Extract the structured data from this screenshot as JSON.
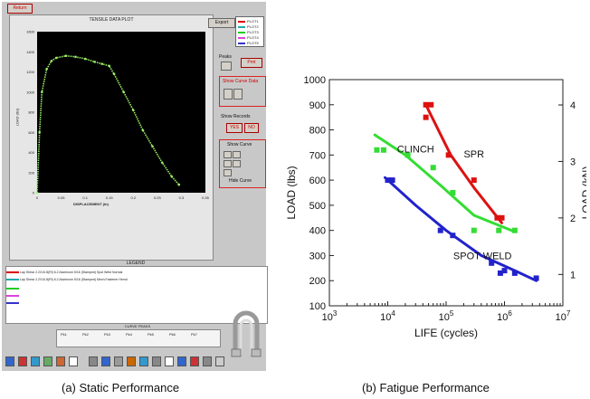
{
  "left_panel": {
    "header_button": "Return",
    "plot_title": "TENSILE DATA PLOT",
    "export_button": "Export",
    "legend_entries": [
      "PLOT1",
      "PLOT2",
      "PLOT3",
      "PLOT4",
      "PLOT5"
    ],
    "peaks_label": "Peaks",
    "peaks_button": "Prnt",
    "show_curve_data": "Show Curve Data",
    "show_records": "Show Records",
    "yes_button": "YES",
    "no_button": "NO",
    "show_curve": "Show Curve",
    "hide_curve": "Hide Curve",
    "legend_heading": "LEGEND",
    "legend_rows": [
      "Lap Shear   2.2X10.8(Rl)   6.2 Aluminum   5/16 (Stamped)   Spot Weld   Normal",
      "Lap Shear   2.2X10.8(Rl)   6.2 Aluminum   5/16 (Stamped)   Mech.Fastener   Hemd"
    ],
    "curve_peaks_heading": "CURVE PEAKS",
    "peaks_cols": [
      "Pk1",
      "Pk2",
      "Pk3",
      "Pk4",
      "Pk5",
      "Pk6",
      "Pk7"
    ],
    "ylabel": "LOAD (lbs)",
    "xlabel": "DISPLACEMENT (in)",
    "colors": {
      "curve": "#99ee66",
      "plot_bg": "#000000",
      "frame": "#c8c8c8",
      "accent": "#cc0000"
    }
  },
  "captions": {
    "left": "(a) Static Performance",
    "right": "(b) Fatigue Performance"
  },
  "chart_data": [
    {
      "type": "line",
      "title": "TENSILE DATA PLOT",
      "xlabel": "DISPLACEMENT (in)",
      "ylabel": "LOAD (lbs)",
      "xlim": [
        0,
        0.35
      ],
      "ylim": [
        0,
        1600
      ],
      "xticks": [
        "0",
        "0.05",
        "0.1",
        "0.15",
        "0.2",
        "0.25",
        "0.3",
        "0.35"
      ],
      "yticks": [
        "0",
        "200",
        "400",
        "600",
        "800",
        "1000",
        "1200",
        "1400",
        "1600"
      ],
      "series": [
        {
          "color": "#99ee66",
          "x": [
            0.0,
            0.005,
            0.01,
            0.02,
            0.03,
            0.04,
            0.06,
            0.08,
            0.1,
            0.12,
            0.135,
            0.15,
            0.16,
            0.18,
            0.2,
            0.22,
            0.24,
            0.26,
            0.28,
            0.295
          ],
          "y": [
            0,
            600,
            1000,
            1230,
            1310,
            1340,
            1360,
            1350,
            1330,
            1300,
            1280,
            1260,
            1180,
            1000,
            820,
            620,
            460,
            300,
            160,
            80
          ]
        }
      ]
    },
    {
      "type": "scatter",
      "xlabel": "LIFE (cycles)",
      "ylabel": "LOAD (lbs)",
      "ylabel_right": "LOAD (kN)",
      "xscale": "log",
      "xlim": [
        1000,
        10000000
      ],
      "ylim": [
        100,
        1000
      ],
      "xticks": [
        "10^3",
        "10^4",
        "10^5",
        "10^6",
        "10^7"
      ],
      "yticks": [
        "100",
        "200",
        "300",
        "400",
        "500",
        "600",
        "700",
        "800",
        "900",
        "1000"
      ],
      "yticks_right": [
        "1",
        "2",
        "3",
        "4"
      ],
      "grid": false,
      "series": [
        {
          "name": "SPR",
          "color": "#dd1111",
          "points": [
            [
              45000,
              900
            ],
            [
              55000,
              900
            ],
            [
              45000,
              850
            ],
            [
              110000,
              700
            ],
            [
              300000,
              600
            ],
            [
              750000,
              450
            ],
            [
              900000,
              450
            ]
          ],
          "fit": [
            [
              45000,
              900
            ],
            [
              120000,
              700
            ],
            [
              300000,
              570
            ],
            [
              900000,
              430
            ]
          ]
        },
        {
          "name": "CLINCH",
          "color": "#33dd33",
          "points": [
            [
              6500,
              720
            ],
            [
              8500,
              720
            ],
            [
              22000,
              700
            ],
            [
              60000,
              650
            ],
            [
              130000,
              550
            ],
            [
              300000,
              400
            ],
            [
              800000,
              400
            ],
            [
              1500000,
              400
            ]
          ],
          "fit": [
            [
              6000,
              780
            ],
            [
              20000,
              700
            ],
            [
              80000,
              580
            ],
            [
              300000,
              460
            ],
            [
              1500000,
              395
            ]
          ]
        },
        {
          "name": "SPOT WELD",
          "color": "#2222cc",
          "points": [
            [
              10000,
              600
            ],
            [
              12000,
              600
            ],
            [
              80000,
              400
            ],
            [
              130000,
              380
            ],
            [
              600000,
              270
            ],
            [
              850000,
              230
            ],
            [
              1000000,
              240
            ],
            [
              1500000,
              230
            ],
            [
              3500000,
              210
            ]
          ],
          "fit": [
            [
              9000,
              610
            ],
            [
              30000,
              500
            ],
            [
              100000,
              400
            ],
            [
              400000,
              300
            ],
            [
              1500000,
              240
            ],
            [
              3500000,
              200
            ]
          ]
        }
      ]
    }
  ]
}
